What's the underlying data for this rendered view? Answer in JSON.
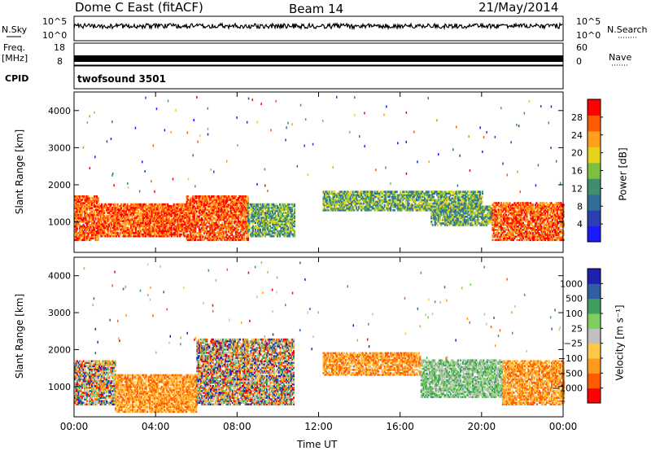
{
  "header": {
    "station": "Dome C East (fitACF)",
    "beam": "Beam 14",
    "date": "21/May/2014"
  },
  "status_panel": {
    "nsky_label": "N.Sky",
    "nsky_ticks": [
      "10^5",
      "10^0"
    ],
    "nsearch_label": "N.Search",
    "nsearch_ticks": [
      "10^5",
      "10^0"
    ],
    "freq_label": "Freq.",
    "freq_unit": "[MHz]",
    "freq_ticks": [
      "18",
      "8"
    ],
    "nave_label": "Nave",
    "nave_ticks": [
      "60",
      "0"
    ],
    "cpid_label": "CPID",
    "cpid_value": "twofsound 3501"
  },
  "colors": {
    "power_scale": [
      "#1a1aff",
      "#2b3fb0",
      "#2f6f9a",
      "#3f8f6f",
      "#7fbf3f",
      "#e6d21a",
      "#ff9f1a",
      "#ff5a00",
      "#ff0000"
    ],
    "velocity_scale": [
      "#ff0000",
      "#ff5a00",
      "#ff9a1a",
      "#ffc84a",
      "#c0c0c0",
      "#7fcf5f",
      "#3f9f5f",
      "#2f5fa0",
      "#2020b0"
    ]
  },
  "chart_data": [
    {
      "type": "heatmap",
      "name": "power",
      "ylabel": "Slant Range [km]",
      "y_ticks": [
        1000,
        2000,
        3000,
        4000
      ],
      "ylim": [
        180,
        4500
      ],
      "x_ticks": [
        "00:00",
        "04:00",
        "08:00",
        "12:00",
        "16:00",
        "20:00",
        "00:00"
      ],
      "xlim_hours": [
        0,
        24
      ],
      "colorbar_label": "Power [dB]",
      "colorbar_ticks": [
        "28",
        "24",
        "20",
        "16",
        "12",
        "8",
        "4"
      ],
      "colorbar_range": [
        0,
        30
      ],
      "regions": [
        {
          "t0": 0.0,
          "t1": 1.2,
          "r0": 500,
          "r1": 1700,
          "level": "high"
        },
        {
          "t0": 1.2,
          "t1": 5.5,
          "r0": 600,
          "r1": 1500,
          "level": "high"
        },
        {
          "t0": 5.5,
          "t1": 8.5,
          "r0": 500,
          "r1": 1700,
          "level": "high"
        },
        {
          "t0": 8.5,
          "t1": 10.8,
          "r0": 600,
          "r1": 1500,
          "level": "mid"
        },
        {
          "t0": 12.2,
          "t1": 20.0,
          "r0": 1300,
          "r1": 1800,
          "level": "mid"
        },
        {
          "t0": 17.5,
          "t1": 20.5,
          "r0": 900,
          "r1": 1400,
          "level": "mid"
        },
        {
          "t0": 20.5,
          "t1": 24.0,
          "r0": 500,
          "r1": 1500,
          "level": "high"
        }
      ]
    },
    {
      "type": "heatmap",
      "name": "velocity",
      "ylabel": "Slant Range [km]",
      "y_ticks": [
        1000,
        2000,
        3000,
        4000
      ],
      "ylim": [
        180,
        4500
      ],
      "x_ticks": [
        "00:00",
        "04:00",
        "08:00",
        "12:00",
        "16:00",
        "20:00",
        "00:00"
      ],
      "xlim_hours": [
        0,
        24
      ],
      "xlabel": "Time UT",
      "colorbar_label": "Velocity [m s⁻¹]",
      "colorbar_ticks": [
        "1000",
        "500",
        "100",
        "25",
        "−25",
        "−100",
        "−500",
        "−1000"
      ],
      "colorbar_range": [
        -1000,
        1000
      ],
      "regions": [
        {
          "t0": 0.0,
          "t1": 2.0,
          "r0": 500,
          "r1": 1700,
          "level": "mixed"
        },
        {
          "t0": 2.0,
          "t1": 6.0,
          "r0": 300,
          "r1": 1300,
          "level": "neg"
        },
        {
          "t0": 6.0,
          "t1": 10.8,
          "r0": 500,
          "r1": 2300,
          "level": "mixed"
        },
        {
          "t0": 12.2,
          "t1": 17.0,
          "r0": 1300,
          "r1": 1900,
          "level": "neg"
        },
        {
          "t0": 17.0,
          "t1": 21.0,
          "r0": 700,
          "r1": 1700,
          "level": "pos"
        },
        {
          "t0": 21.0,
          "t1": 24.0,
          "r0": 500,
          "r1": 1700,
          "level": "neg"
        }
      ]
    }
  ]
}
